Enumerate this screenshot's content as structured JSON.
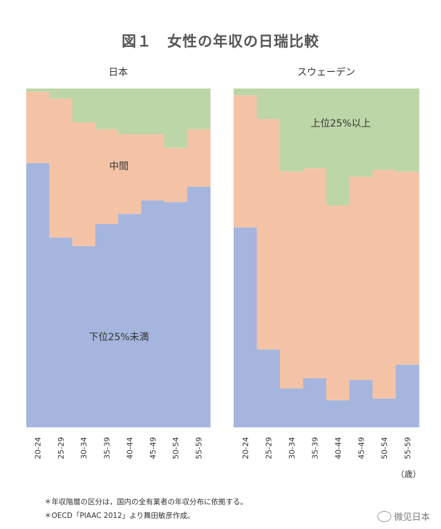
{
  "title": "図１　女性の年収の日瑞比較",
  "unit_label": "（歳）",
  "footnotes": [
    "＊年収階層の区分は，国内の全有業者の年収分布に依拠する。",
    "＊OECD「PIAAC 2012」より舞田敏彦作成。"
  ],
  "watermark": "微见日本",
  "colors": {
    "bottom": "#a5b5de",
    "middle": "#f4c3a6",
    "top": "#bdd6a7"
  },
  "chart_data": [
    {
      "type": "area",
      "stacked": true,
      "percent": true,
      "title": "日本",
      "categories": [
        "20-24",
        "25-29",
        "30-34",
        "35-39",
        "40-44",
        "45-49",
        "50-54",
        "55-59"
      ],
      "ylim": [
        0,
        100
      ],
      "series": [
        {
          "name": "下位25%未満",
          "values": [
            78,
            56,
            53.5,
            60,
            63,
            67,
            66.5,
            71
          ]
        },
        {
          "name": "中間",
          "values": [
            21,
            41,
            36.5,
            28,
            23.5,
            19.5,
            16,
            17
          ]
        },
        {
          "name": "上位25%以上",
          "values": [
            1,
            3,
            10,
            12,
            13.5,
            13.5,
            17.5,
            12
          ]
        }
      ],
      "labels": [
        {
          "text": "中間",
          "series": 1
        },
        {
          "text": "下位25%未満",
          "series": 0
        }
      ]
    },
    {
      "type": "area",
      "stacked": true,
      "percent": true,
      "title": "スウェーデン",
      "categories": [
        "20-24",
        "25-29",
        "30-34",
        "35-39",
        "40-44",
        "45-49",
        "50-54",
        "55-59"
      ],
      "ylim": [
        0,
        100
      ],
      "series": [
        {
          "name": "下位25%未満",
          "values": [
            59,
            23,
            11.5,
            14.5,
            8,
            14,
            8.5,
            18.5
          ]
        },
        {
          "name": "中間",
          "values": [
            39,
            68,
            64,
            62,
            57.5,
            60,
            67.5,
            57
          ]
        },
        {
          "name": "上位25%以上",
          "values": [
            2,
            9,
            24.5,
            23.5,
            34.5,
            26,
            24,
            24.5
          ]
        }
      ],
      "labels": [
        {
          "text": "上位25%以上",
          "series": 2
        }
      ]
    }
  ]
}
